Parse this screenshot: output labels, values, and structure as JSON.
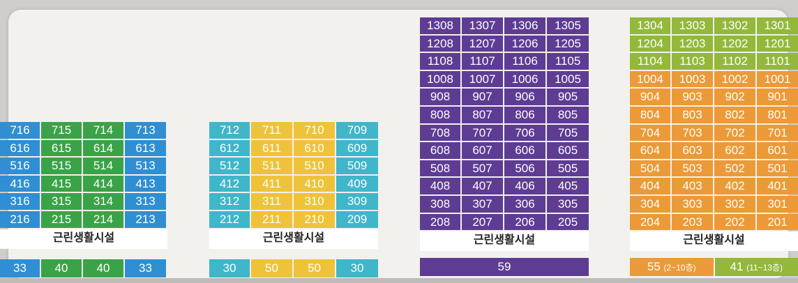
{
  "colors": {
    "blue": "#2f8fd2",
    "green": "#3aa347",
    "cyan": "#3fb6c9",
    "yellow": "#eec33a",
    "purple": "#5e3c93",
    "lime": "#93b83a",
    "orange": "#eb9a37"
  },
  "buildings": [
    {
      "name": "building-a",
      "facility_label": "근린생활시설",
      "rows": [
        [
          "716",
          "715",
          "714",
          "713"
        ],
        [
          "616",
          "615",
          "614",
          "613"
        ],
        [
          "516",
          "515",
          "514",
          "513"
        ],
        [
          "416",
          "415",
          "414",
          "413"
        ],
        [
          "316",
          "315",
          "314",
          "313"
        ],
        [
          "216",
          "215",
          "214",
          "213"
        ]
      ],
      "column_colors": [
        "blue",
        "green",
        "green",
        "blue"
      ],
      "footer": [
        {
          "value": "33",
          "color": "blue"
        },
        {
          "value": "40",
          "color": "green"
        },
        {
          "value": "40",
          "color": "green"
        },
        {
          "value": "33",
          "color": "blue"
        }
      ]
    },
    {
      "name": "building-b",
      "facility_label": "근린생활시설",
      "rows": [
        [
          "712",
          "711",
          "710",
          "709"
        ],
        [
          "612",
          "611",
          "610",
          "609"
        ],
        [
          "512",
          "511",
          "510",
          "509"
        ],
        [
          "412",
          "411",
          "410",
          "409"
        ],
        [
          "312",
          "311",
          "310",
          "309"
        ],
        [
          "212",
          "211",
          "210",
          "209"
        ]
      ],
      "column_colors": [
        "cyan",
        "yellow",
        "yellow",
        "cyan"
      ],
      "footer": [
        {
          "value": "30",
          "color": "cyan"
        },
        {
          "value": "50",
          "color": "yellow"
        },
        {
          "value": "50",
          "color": "yellow"
        },
        {
          "value": "30",
          "color": "cyan"
        }
      ]
    },
    {
      "name": "building-c",
      "facility_label": "근린생활시설",
      "rows": [
        [
          "1308",
          "1307",
          "1306",
          "1305"
        ],
        [
          "1208",
          "1207",
          "1206",
          "1205"
        ],
        [
          "1108",
          "1107",
          "1106",
          "1105"
        ],
        [
          "1008",
          "1007",
          "1006",
          "1005"
        ],
        [
          "908",
          "907",
          "906",
          "905"
        ],
        [
          "808",
          "807",
          "806",
          "805"
        ],
        [
          "708",
          "707",
          "706",
          "705"
        ],
        [
          "608",
          "607",
          "606",
          "605"
        ],
        [
          "508",
          "507",
          "506",
          "505"
        ],
        [
          "408",
          "407",
          "406",
          "405"
        ],
        [
          "308",
          "307",
          "306",
          "305"
        ],
        [
          "208",
          "207",
          "206",
          "205"
        ]
      ],
      "column_colors": [
        "purple",
        "purple",
        "purple",
        "purple"
      ],
      "footer": [
        {
          "value": "59",
          "color": "purple"
        }
      ]
    },
    {
      "name": "building-d",
      "facility_label": "근린생활시설",
      "rows": [
        [
          "1304",
          "1303",
          "1302",
          "1301"
        ],
        [
          "1204",
          "1203",
          "1202",
          "1201"
        ],
        [
          "1104",
          "1103",
          "1102",
          "1101"
        ],
        [
          "1004",
          "1003",
          "1002",
          "1001"
        ],
        [
          "904",
          "903",
          "902",
          "901"
        ],
        [
          "804",
          "803",
          "802",
          "801"
        ],
        [
          "704",
          "703",
          "702",
          "701"
        ],
        [
          "604",
          "603",
          "602",
          "601"
        ],
        [
          "504",
          "503",
          "502",
          "501"
        ],
        [
          "404",
          "403",
          "402",
          "401"
        ],
        [
          "304",
          "303",
          "302",
          "301"
        ],
        [
          "204",
          "203",
          "202",
          "201"
        ]
      ],
      "row_colors": [
        "lime",
        "lime",
        "lime",
        "orange",
        "orange",
        "orange",
        "orange",
        "orange",
        "orange",
        "orange",
        "orange",
        "orange"
      ],
      "footer": [
        {
          "value": "55",
          "sub": "(2~10층)",
          "color": "orange"
        },
        {
          "value": "41",
          "sub": "(11~13층)",
          "color": "lime"
        }
      ]
    }
  ]
}
